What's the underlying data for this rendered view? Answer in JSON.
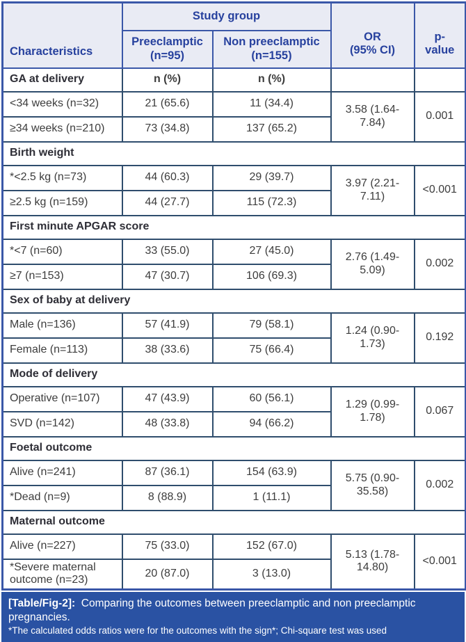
{
  "colors": {
    "header_bg": "#e9ebf4",
    "header_text": "#27419e",
    "header_border": "#3a57a8",
    "body_border": "#2f4d6d",
    "body_text": "#3c3c3c",
    "footer_bg": "#2a52a3",
    "footer_text": "#ffffff"
  },
  "header": {
    "characteristics": "Characteristics",
    "study_group": "Study group",
    "preeclamptic": "Preeclamptic\n(n=95)",
    "non_preeclamptic": "Non preeclamptic\n(n=155)",
    "or": "OR\n(95% CI)",
    "p_value": "p-\nvalue"
  },
  "sections": [
    {
      "title": "GA at delivery",
      "subheader": [
        "n (%)",
        "n (%)"
      ],
      "rows": [
        {
          "label": "<34 weeks (n=32)",
          "preeclamptic": "21 (65.6)",
          "non_preeclamptic": "11 (34.4)"
        },
        {
          "label": "≥34 weeks (n=210)",
          "preeclamptic": "73 (34.8)",
          "non_preeclamptic": "137 (65.2)"
        }
      ],
      "or": "3.58 (1.64-\n7.84)",
      "p": "0.001"
    },
    {
      "title": "Birth weight",
      "rows": [
        {
          "label": "*<2.5 kg (n=73)",
          "preeclamptic": "44 (60.3)",
          "non_preeclamptic": "29 (39.7)"
        },
        {
          "label": "≥2.5 kg (n=159)",
          "preeclamptic": "44 (27.7)",
          "non_preeclamptic": "115 (72.3)"
        }
      ],
      "or": "3.97 (2.21-\n7.11)",
      "p": "<0.001"
    },
    {
      "title": "First minute APGAR score",
      "rows": [
        {
          "label": "*<7 (n=60)",
          "preeclamptic": "33 (55.0)",
          "non_preeclamptic": "27 (45.0)"
        },
        {
          "label": "≥7 (n=153)",
          "preeclamptic": "47 (30.7)",
          "non_preeclamptic": "106 (69.3)"
        }
      ],
      "or": "2.76 (1.49-\n5.09)",
      "p": "0.002"
    },
    {
      "title": "Sex of baby at delivery",
      "rows": [
        {
          "label": "Male (n=136)",
          "preeclamptic": "57 (41.9)",
          "non_preeclamptic": "79 (58.1)"
        },
        {
          "label": "Female (n=113)",
          "preeclamptic": "38 (33.6)",
          "non_preeclamptic": "75 (66.4)"
        }
      ],
      "or": "1.24 (0.90-\n1.73)",
      "p": "0.192"
    },
    {
      "title": "Mode of delivery",
      "rows": [
        {
          "label": "Operative (n=107)",
          "preeclamptic": "47 (43.9)",
          "non_preeclamptic": "60 (56.1)"
        },
        {
          "label": "SVD (n=142)",
          "preeclamptic": "48 (33.8)",
          "non_preeclamptic": "94 (66.2)"
        }
      ],
      "or": "1.29 (0.99-\n1.78)",
      "p": "0.067"
    },
    {
      "title": "Foetal outcome",
      "rows": [
        {
          "label": "Alive (n=241)",
          "preeclamptic": "87 (36.1)",
          "non_preeclamptic": "154 (63.9)"
        },
        {
          "label": "*Dead (n=9)",
          "preeclamptic": "8 (88.9)",
          "non_preeclamptic": "1 (11.1)"
        }
      ],
      "or": "5.75 (0.90-\n35.58)",
      "p": "0.002"
    },
    {
      "title": "Maternal outcome",
      "rows": [
        {
          "label": "Alive (n=227)",
          "preeclamptic": "75 (33.0)",
          "non_preeclamptic": "152 (67.0)"
        },
        {
          "label": "*Severe maternal outcome (n=23)",
          "preeclamptic": "20 (87.0)",
          "non_preeclamptic": "3 (13.0)"
        }
      ],
      "or": "5.13 (1.78-\n14.80)",
      "p": "<0.001"
    }
  ],
  "footer": {
    "tag": "[Table/Fig-2]:",
    "caption": "Comparing the outcomes between preeclamptic and non preeclamptic pregnancies.",
    "footnote": "*The calculated odds ratios were for the outcomes with the sign*; Chi-square test was used"
  }
}
